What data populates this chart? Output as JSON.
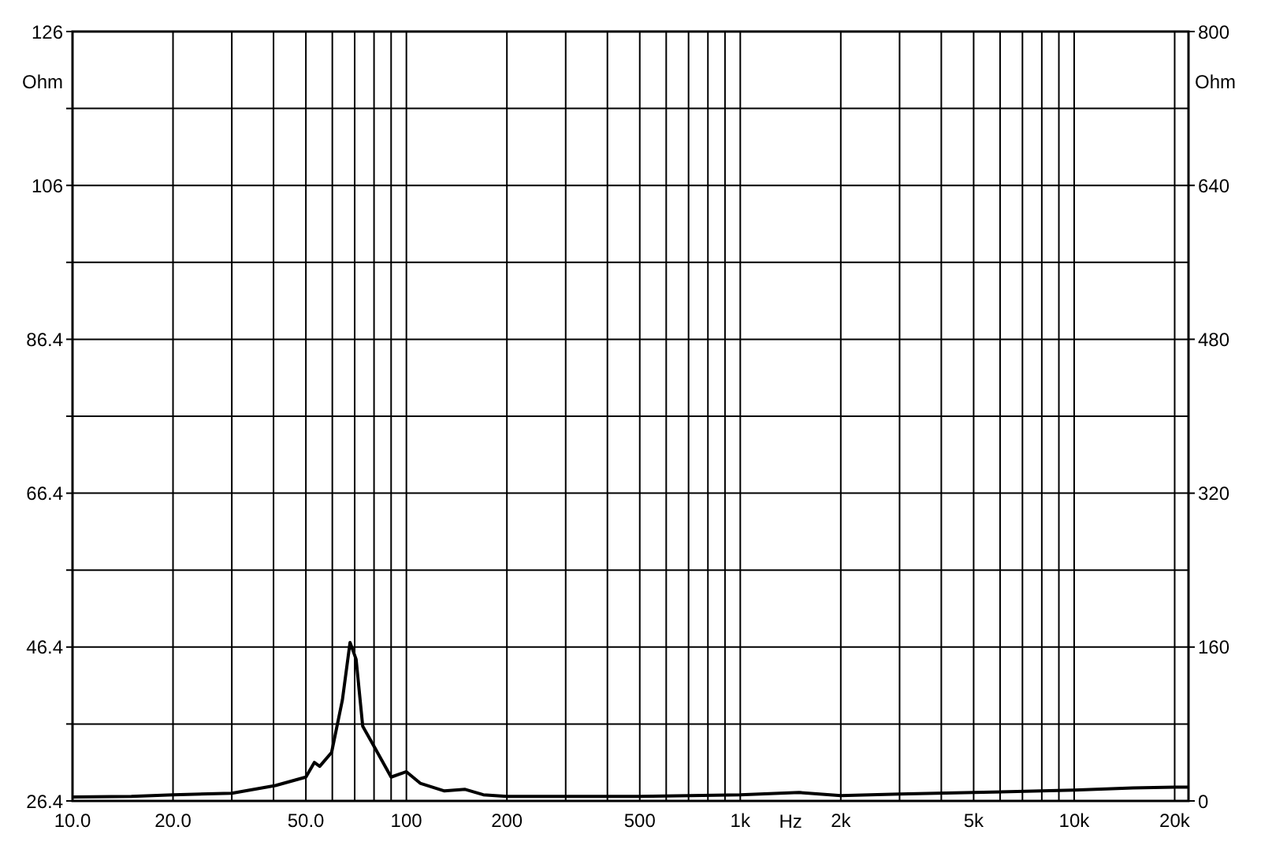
{
  "chart_data": {
    "type": "line",
    "xlabel": "Hz",
    "ylabel": "Ohm",
    "y2label": "Ohm",
    "log": "x",
    "grid": true,
    "marker": "none",
    "line_style": "solid",
    "xlim": [
      10,
      22000
    ],
    "xticks": [
      {
        "value": 10,
        "label": "10.0"
      },
      {
        "value": 20,
        "label": "20.0"
      },
      {
        "value": 30,
        "label": null
      },
      {
        "value": 40,
        "label": null
      },
      {
        "value": 50,
        "label": "50.0"
      },
      {
        "value": 60,
        "label": null
      },
      {
        "value": 70,
        "label": null
      },
      {
        "value": 80,
        "label": null
      },
      {
        "value": 90,
        "label": null
      },
      100,
      200,
      {
        "value": 300,
        "label": null
      },
      {
        "value": 400,
        "label": null
      },
      500,
      {
        "value": 600,
        "label": null
      },
      {
        "value": 700,
        "label": null
      },
      {
        "value": 800,
        "label": null
      },
      {
        "value": 900,
        "label": null
      },
      {
        "value": 1000,
        "label": "1k"
      },
      {
        "value": 2000,
        "label": "2k"
      },
      {
        "value": 3000,
        "label": null
      },
      {
        "value": 4000,
        "label": null
      },
      {
        "value": 5000,
        "label": "5k"
      },
      {
        "value": 6000,
        "label": null
      },
      {
        "value": 7000,
        "label": null
      },
      {
        "value": 8000,
        "label": null
      },
      {
        "value": 9000,
        "label": null
      },
      {
        "value": 10000,
        "label": "10k"
      },
      {
        "value": 20000,
        "label": "20k"
      }
    ],
    "ylim": [
      26.4,
      126.4
    ],
    "yticks": [
      26.4,
      {
        "value": 36.4,
        "label": null
      },
      46.4,
      {
        "value": 56.4,
        "label": null
      },
      66.4,
      {
        "value": 76.4,
        "label": null
      },
      86.4,
      {
        "value": 96.4,
        "label": null
      },
      {
        "value": 106.4,
        "label": "106"
      },
      {
        "value": 116.4,
        "label": null
      },
      {
        "value": 126.4,
        "label": "126"
      }
    ],
    "y2lim": [
      0,
      800
    ],
    "y2ticks": [
      0,
      160,
      320,
      480,
      640,
      800
    ],
    "series": [
      {
        "color": "#000000",
        "x": [
          10,
          15,
          20,
          30,
          40.5,
          50,
          53,
          55,
          59.7,
          64.3,
          67.8,
          70.7,
          74,
          80,
          90,
          100,
          110,
          130,
          150,
          170,
          200,
          300,
          500,
          1000,
          1500,
          2000,
          3000,
          5000,
          10000,
          15000,
          20000,
          22000
        ],
        "values": [
          26.9,
          27.0,
          27.2,
          27.4,
          28.4,
          29.5,
          31.4,
          30.9,
          32.7,
          39.5,
          47.0,
          44.8,
          36.1,
          33.5,
          29.5,
          30.2,
          28.7,
          27.7,
          27.9,
          27.2,
          27.0,
          27.0,
          27.0,
          27.2,
          27.5,
          27.1,
          27.3,
          27.5,
          27.8,
          28.1,
          28.2,
          28.2
        ]
      }
    ]
  }
}
